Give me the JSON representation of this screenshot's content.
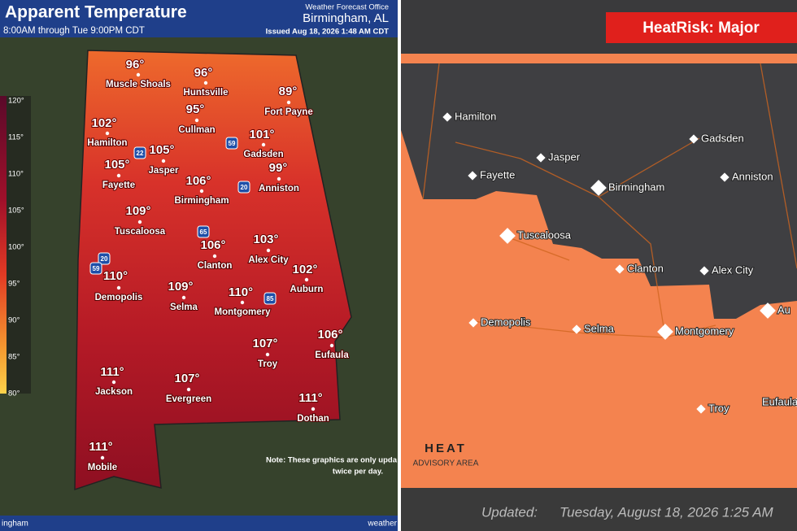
{
  "left": {
    "header": {
      "title": "Apparent Temperature",
      "period": "8:00AM through Tue 9:00PM CDT",
      "office": "Weather Forecast Office",
      "location": "Birmingham, AL",
      "issued": "Issued Aug 18, 2026 1:48 AM CDT"
    },
    "legend": [
      "120°",
      "115°",
      "110°",
      "105°",
      "100°",
      "95°",
      "90°",
      "85°",
      "80°"
    ],
    "cities": [
      {
        "temp": "96°",
        "name": "Muscle Shoals"
      },
      {
        "temp": "96°",
        "name": "Huntsville"
      },
      {
        "temp": "89°",
        "name": "Fort Payne"
      },
      {
        "temp": "95°",
        "name": "Cullman"
      },
      {
        "temp": "102°",
        "name": "Hamilton"
      },
      {
        "temp": "101°",
        "name": "Gadsden"
      },
      {
        "temp": "105°",
        "name": "Jasper"
      },
      {
        "temp": "105°",
        "name": "Fayette"
      },
      {
        "temp": "99°",
        "name": "Anniston"
      },
      {
        "temp": "106°",
        "name": "Birmingham"
      },
      {
        "temp": "109°",
        "name": "Tuscaloosa"
      },
      {
        "temp": "103°",
        "name": "Alex City"
      },
      {
        "temp": "106°",
        "name": "Clanton"
      },
      {
        "temp": "102°",
        "name": "Auburn"
      },
      {
        "temp": "110°",
        "name": "Demopolis"
      },
      {
        "temp": "109°",
        "name": "Selma"
      },
      {
        "temp": "110°",
        "name": "Montgomery"
      },
      {
        "temp": "106°",
        "name": "Eufaula"
      },
      {
        "temp": "107°",
        "name": "Troy"
      },
      {
        "temp": "111°",
        "name": "Jackson"
      },
      {
        "temp": "107°",
        "name": "Evergreen"
      },
      {
        "temp": "111°",
        "name": "Dothan"
      },
      {
        "temp": "111°",
        "name": "Mobile"
      }
    ],
    "interstates": [
      "22",
      "59",
      "20",
      "65",
      "20",
      "59",
      "85"
    ],
    "note": [
      "Note: These graphics are only upda",
      "twice per day."
    ],
    "footer": {
      "left": "ingham",
      "right": "weather"
    }
  },
  "right": {
    "banner": "HeatRisk: Major",
    "cities": [
      "Hamilton",
      "Jasper",
      "Fayette",
      "Birmingham",
      "Gadsden",
      "Anniston",
      "Tuscaloosa",
      "Clanton",
      "Alex City",
      "Demopolis",
      "Selma",
      "Montgomery",
      "Troy",
      "Au",
      "Eufaula"
    ],
    "legend": {
      "title": "HEAT",
      "subtitle": "ADVISORY AREA"
    },
    "updated": {
      "label": "Updated:",
      "date": "Tuesday, August 18, 2026 1:25 AM"
    }
  }
}
